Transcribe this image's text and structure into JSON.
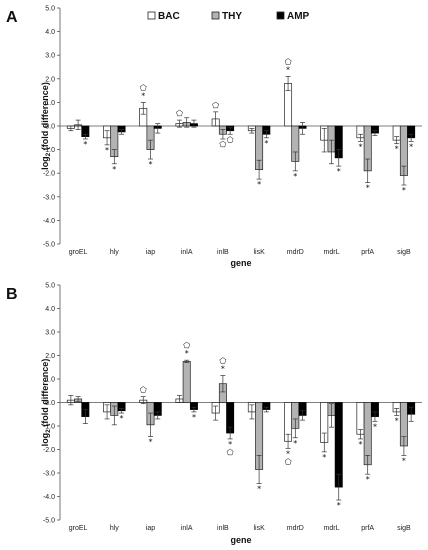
{
  "legend": [
    {
      "name": "BAC",
      "color": "#ffffff"
    },
    {
      "name": "THY",
      "color": "#b3b3b3"
    },
    {
      "name": "AMP",
      "color": "#000000"
    }
  ],
  "chart_data": [
    {
      "type": "bar",
      "panel": "A",
      "categories": [
        "groEL",
        "hly",
        "iap",
        "inlA",
        "inlB",
        "lisK",
        "mdrD",
        "mdrL",
        "prfA",
        "sigB"
      ],
      "xlabel": "gene",
      "ylabel": "log2 (fold difference)",
      "ylim": [
        -5.0,
        5.0
      ],
      "ytick_step": 1.0,
      "yticks": [
        "-5.0",
        "-4.0",
        "-3.0",
        "-2.0",
        "-1.0",
        "0.0",
        "1.0",
        "2.0",
        "3.0",
        "4.0",
        "5.0"
      ],
      "series": [
        {
          "name": "BAC",
          "values": [
            -0.1,
            -0.5,
            0.75,
            0.1,
            0.3,
            -0.2,
            1.8,
            -0.6,
            -0.5,
            -0.6
          ],
          "errors": [
            0.1,
            0.3,
            0.25,
            0.15,
            0.3,
            0.1,
            0.3,
            0.5,
            0.15,
            0.15
          ],
          "star": [
            false,
            true,
            true,
            false,
            false,
            false,
            true,
            false,
            true,
            true
          ],
          "circle": [
            false,
            false,
            true,
            true,
            true,
            false,
            true,
            false,
            false,
            false
          ]
        },
        {
          "name": "THY",
          "values": [
            0.05,
            -1.3,
            -1.0,
            0.15,
            -0.35,
            -1.85,
            -1.5,
            -1.1,
            -1.9,
            -2.1
          ],
          "errors": [
            0.2,
            0.3,
            0.4,
            0.2,
            0.2,
            0.4,
            0.4,
            0.5,
            0.5,
            0.4
          ],
          "star": [
            false,
            true,
            true,
            false,
            false,
            true,
            true,
            false,
            true,
            true
          ],
          "circle": [
            false,
            false,
            false,
            false,
            true,
            false,
            false,
            false,
            false,
            false
          ]
        },
        {
          "name": "AMP",
          "values": [
            -0.45,
            -0.25,
            -0.1,
            0.1,
            -0.2,
            -0.35,
            -0.1,
            -1.35,
            -0.3,
            -0.5
          ],
          "errors": [
            0.1,
            0.1,
            0.2,
            0.15,
            0.15,
            0.15,
            0.25,
            0.35,
            0.1,
            0.15
          ],
          "star": [
            true,
            false,
            false,
            false,
            false,
            true,
            false,
            true,
            false,
            true
          ],
          "circle": [
            false,
            false,
            false,
            false,
            true,
            false,
            false,
            false,
            false,
            false
          ]
        }
      ],
      "grid": false,
      "legend_position": "top"
    },
    {
      "type": "bar",
      "panel": "B",
      "categories": [
        "groEL",
        "hly",
        "iap",
        "inlA",
        "inlB",
        "lisK",
        "mdrD",
        "mdrL",
        "prfA",
        "sigB"
      ],
      "xlabel": "gene",
      "ylabel": "log2 (fold difference)",
      "ylim": [
        -5.0,
        5.0
      ],
      "ytick_step": 1.0,
      "yticks": [
        "-5.0",
        "-4.0",
        "-3.0",
        "-2.0",
        "-1.0",
        "0.0",
        "1.0",
        "2.0",
        "3.0",
        "4.0",
        "5.0"
      ],
      "series": [
        {
          "name": "BAC",
          "values": [
            0.1,
            -0.4,
            0.1,
            0.15,
            -0.45,
            -0.4,
            -1.65,
            -1.7,
            -1.35,
            -0.4
          ],
          "errors": [
            0.2,
            0.3,
            0.15,
            0.15,
            0.3,
            0.3,
            0.3,
            0.4,
            0.2,
            0.15
          ],
          "star": [
            false,
            false,
            false,
            false,
            false,
            false,
            true,
            true,
            true,
            true
          ],
          "circle": [
            false,
            false,
            true,
            false,
            false,
            false,
            true,
            false,
            false,
            false
          ]
        },
        {
          "name": "THY",
          "values": [
            0.15,
            -0.55,
            -0.95,
            1.75,
            0.8,
            -2.85,
            -1.1,
            -0.55,
            -2.65,
            -1.85
          ],
          "errors": [
            0.1,
            0.4,
            0.5,
            0.05,
            0.35,
            0.6,
            0.4,
            0.5,
            0.4,
            0.4
          ],
          "star": [
            false,
            false,
            true,
            true,
            true,
            true,
            true,
            false,
            true,
            true
          ],
          "circle": [
            false,
            false,
            false,
            true,
            true,
            false,
            false,
            false,
            false,
            false
          ]
        },
        {
          "name": "AMP",
          "values": [
            -0.6,
            -0.35,
            -0.55,
            -0.3,
            -1.3,
            -0.3,
            -0.55,
            -3.6,
            -0.6,
            -0.5
          ],
          "errors": [
            0.3,
            0.1,
            0.15,
            0.1,
            0.25,
            0.1,
            0.2,
            0.55,
            0.2,
            0.3
          ],
          "star": [
            false,
            true,
            false,
            true,
            true,
            false,
            false,
            true,
            true,
            false
          ],
          "circle": [
            false,
            false,
            false,
            false,
            true,
            false,
            false,
            false,
            false,
            false
          ]
        }
      ],
      "grid": false,
      "legend_position": "none"
    }
  ]
}
